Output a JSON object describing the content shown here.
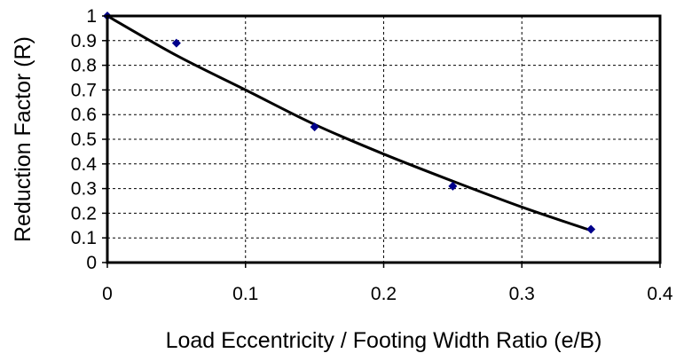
{
  "chart_data": {
    "type": "scatter",
    "title": "",
    "xlabel": "Load Eccentricity / Footing Width Ratio (e/B)",
    "ylabel": "Reduction Factor (R)",
    "xlim": [
      0,
      0.4
    ],
    "ylim": [
      0,
      1
    ],
    "x_ticks": [
      "0",
      "0.1",
      "0.2",
      "0.3",
      "0.4"
    ],
    "y_ticks": [
      "0",
      "0.1",
      "0.2",
      "0.3",
      "0.4",
      "0.5",
      "0.6",
      "0.7",
      "0.8",
      "0.9",
      "1"
    ],
    "grid": true,
    "legend": "none",
    "points": {
      "x": [
        0,
        0.05,
        0.15,
        0.25,
        0.35
      ],
      "y": [
        1.0,
        0.89,
        0.55,
        0.31,
        0.135
      ],
      "color": "#00008B",
      "marker": "diamond"
    },
    "trendline": {
      "x": [
        0,
        0.05,
        0.1,
        0.15,
        0.2,
        0.25,
        0.3,
        0.35
      ],
      "y": [
        1.0,
        0.84,
        0.7,
        0.56,
        0.44,
        0.33,
        0.225,
        0.13
      ],
      "color": "#000000"
    }
  }
}
